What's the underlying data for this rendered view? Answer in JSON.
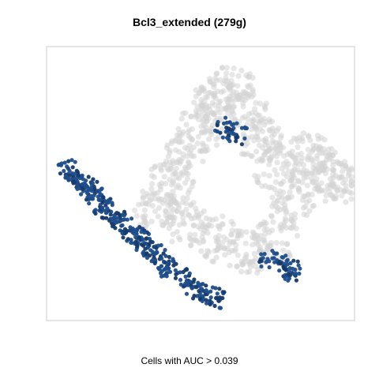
{
  "chart_data": {
    "type": "scatter",
    "title": "Bcl3_extended (279g)",
    "xlabel": "Cells with AUC > 0.039",
    "ylabel": "",
    "grid": false,
    "legend": "none",
    "colors": {
      "background_cells": "#d3d3d3",
      "active_cells": "#1f4e8c",
      "active_cells_dark": "#163a6b",
      "frame": "#cccccc"
    },
    "xlim": [
      0,
      100
    ],
    "ylim": [
      0,
      100
    ],
    "groups": [
      {
        "role": "inactive",
        "x": [
          35,
          40,
          45,
          50,
          55,
          60,
          65,
          70,
          75,
          80,
          45,
          55,
          65,
          75,
          85,
          90,
          95
        ],
        "y": [
          40,
          50,
          60,
          70,
          80,
          85,
          75,
          65,
          55,
          45,
          35,
          30,
          25,
          30,
          60,
          55,
          50
        ]
      },
      {
        "role": "active",
        "x": [
          7,
          9,
          12,
          14,
          16,
          18,
          20,
          22,
          25,
          28,
          30,
          32,
          35,
          38,
          40,
          45,
          48,
          52,
          55,
          58,
          62,
          72,
          78,
          80
        ],
        "y": [
          55,
          52,
          50,
          48,
          45,
          42,
          40,
          38,
          35,
          32,
          30,
          28,
          25,
          22,
          18,
          15,
          12,
          10,
          8,
          70,
          68,
          22,
          20,
          18
        ]
      }
    ]
  }
}
